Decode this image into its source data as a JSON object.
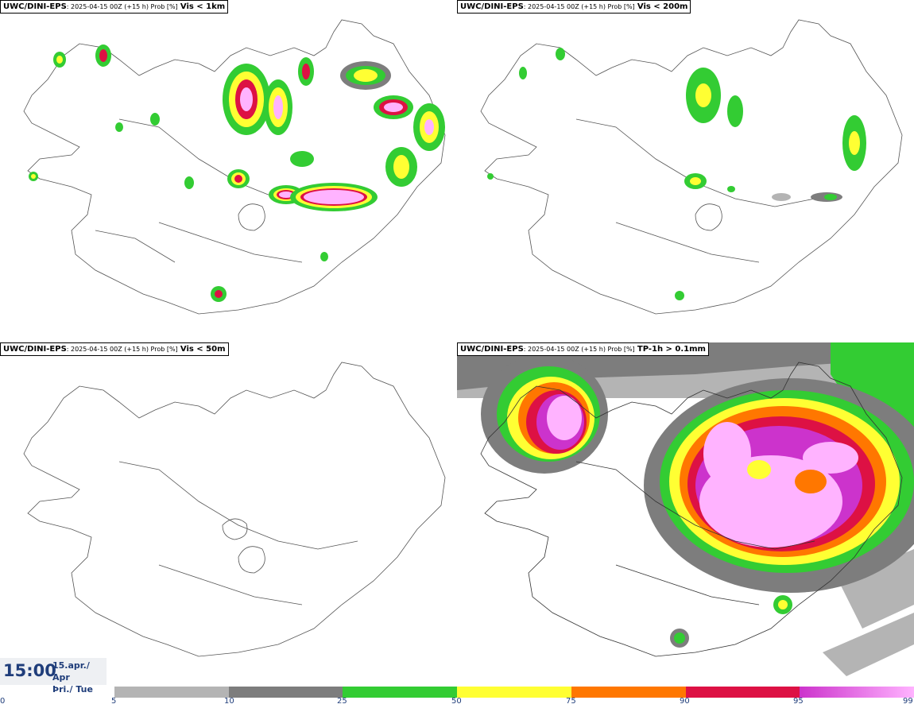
{
  "panels": [
    {
      "model": "UWC/DINI-EPS",
      "run": ": 2025-04-15 00Z (+15 h) Prob [%]",
      "variable": "Vis < 1km"
    },
    {
      "model": "UWC/DINI-EPS",
      "run": ": 2025-04-15 00Z (+15 h) Prob [%]",
      "variable": "Vis < 200m"
    },
    {
      "model": "UWC/DINI-EPS",
      "run": ": 2025-04-15 00Z (+15 h) Prob [%]",
      "variable": "Vis < 50m"
    },
    {
      "model": "UWC/DINI-EPS",
      "run": ": 2025-04-15 00Z (+15 h) Prob [%]",
      "variable": "TP-1h > 0.1mm"
    }
  ],
  "time": {
    "clock": "15:00",
    "date_line1": "15.apr./ Apr",
    "date_line2": "Þri./ Tue"
  },
  "colorbar": {
    "ticks": [
      "0",
      "5",
      "10",
      "25",
      "50",
      "75",
      "90",
      "95",
      "99"
    ],
    "segments": [
      {
        "from": 5,
        "to": 10,
        "color": "#b4b4b4"
      },
      {
        "from": 10,
        "to": 25,
        "color": "#7d7d7d"
      },
      {
        "from": 25,
        "to": 50,
        "color": "#33cc33"
      },
      {
        "from": 50,
        "to": 75,
        "color": "#ffff33"
      },
      {
        "from": 75,
        "to": 90,
        "color": "#ff7700"
      },
      {
        "from": 90,
        "to": 95,
        "color": "#dd1144"
      },
      {
        "from": 95,
        "to": 99,
        "color": "#cc33cc"
      }
    ],
    "last_gradient": [
      "#cc33cc",
      "#ffb3ff"
    ]
  }
}
